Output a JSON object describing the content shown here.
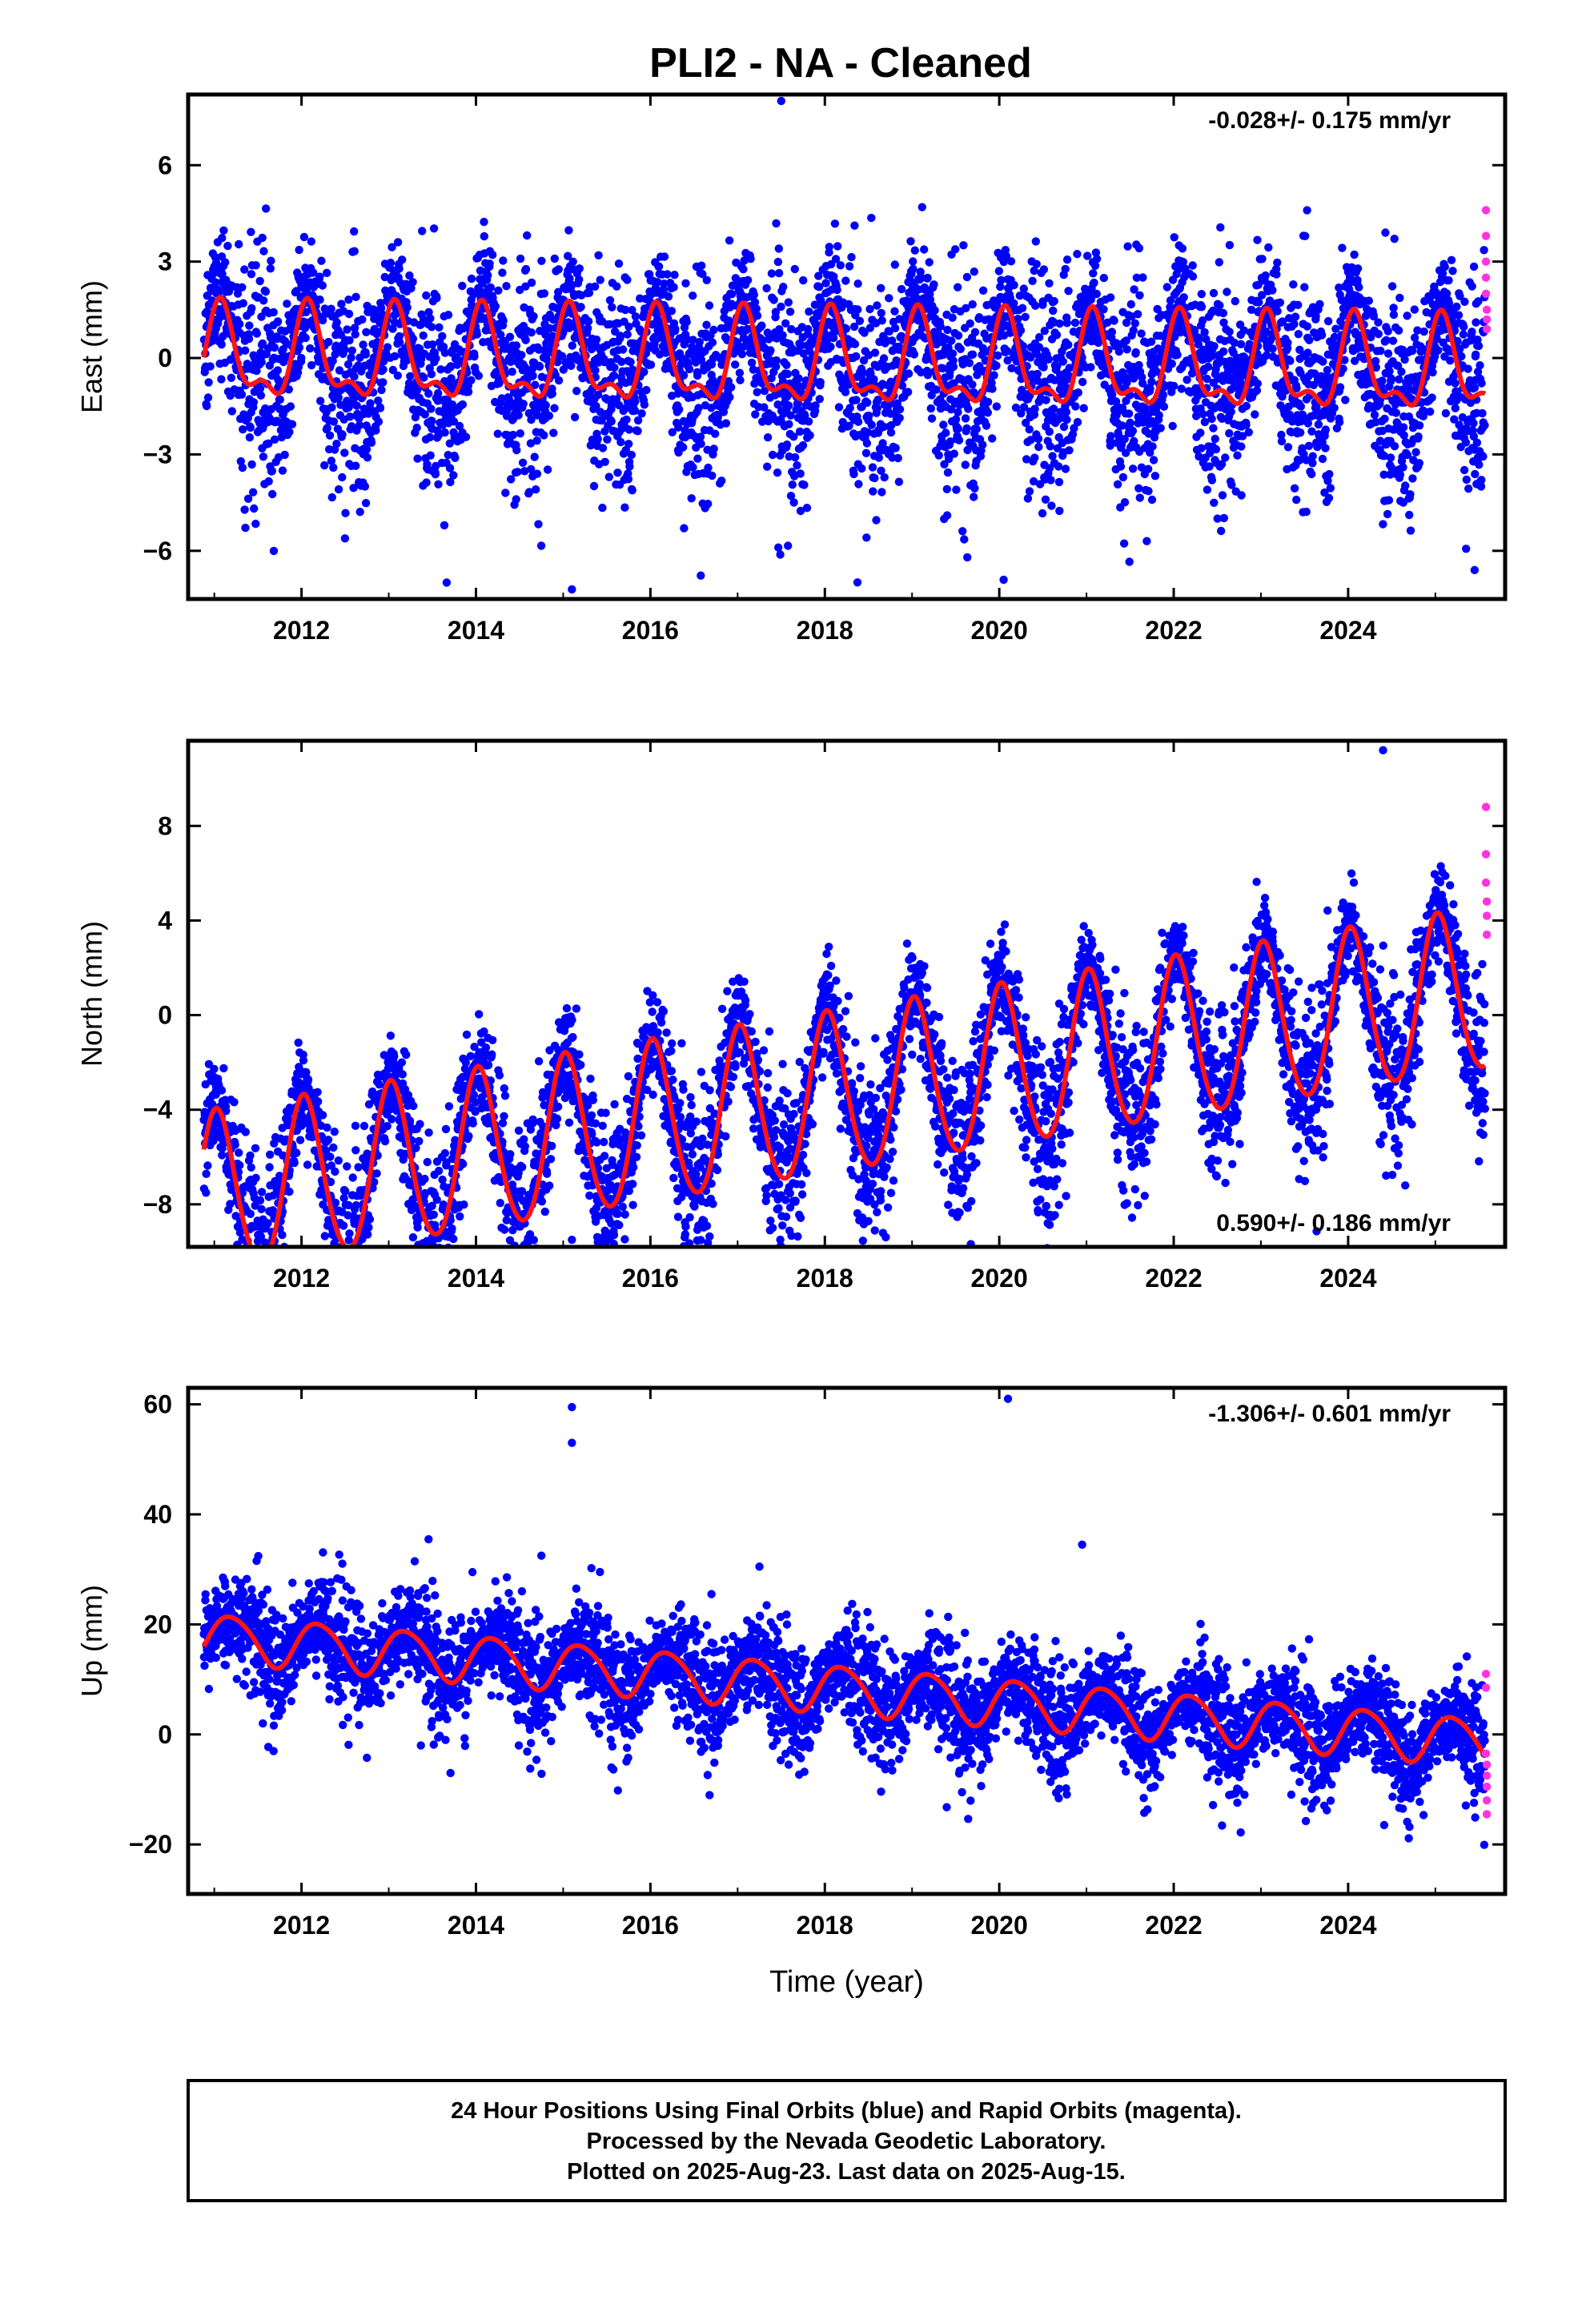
{
  "title": "PLI2  - NA - Cleaned",
  "footer": {
    "line1": "24 Hour Positions Using Final Orbits (blue) and Rapid Orbits (magenta).",
    "line2": "Processed by the Nevada Geodetic Laboratory.",
    "line3": "Plotted on 2025-Aug-23. Last data on 2025-Aug-15."
  },
  "colors": {
    "final": "#0000ff",
    "rapid": "#ff33dd",
    "model": "#ff1414",
    "frame": "#000000"
  },
  "chart_data": [
    {
      "type": "scatter",
      "component": "east",
      "ylabel": "East (mm)",
      "xlabel": "",
      "rate_text": "-0.028+/- 0.175 mm/yr",
      "rate_position": "top-right",
      "xlim": [
        2010.7,
        2025.8
      ],
      "ylim": [
        -7.5,
        8.2
      ],
      "xticks": [
        2012,
        2014,
        2016,
        2018,
        2020,
        2022,
        2024
      ],
      "yticks": [
        -6,
        -3,
        0,
        3,
        6
      ],
      "model": {
        "trend_mm_per_yr": -0.028,
        "base": -0.2,
        "annual_amp": 1.3,
        "annual_phase_year": 0.08,
        "semiannual_amp": 0.6,
        "semiannual_phase_year": 0.06
      },
      "scatter_sigma": 1.4,
      "rapid_points": {
        "x": [
          2025.58,
          2025.58,
          2025.58,
          2025.58,
          2025.58,
          2025.59,
          2025.59,
          2025.59
        ],
        "y": [
          4.6,
          3.8,
          3.0,
          2.5,
          2.0,
          1.5,
          1.2,
          0.9
        ]
      },
      "outliers": {
        "x": [
          2015.1,
          2017.5,
          2020.05,
          2025.45
        ],
        "y": [
          -7.2,
          8.0,
          -6.9,
          -6.6
        ]
      }
    },
    {
      "type": "scatter",
      "component": "north",
      "ylabel": "North (mm)",
      "xlabel": "",
      "rate_text": "0.590+/- 0.186 mm/yr",
      "rate_position": "bottom-right",
      "xlim": [
        2010.7,
        2025.8
      ],
      "ylim": [
        -9.8,
        11.6
      ],
      "xticks": [
        2012,
        2014,
        2016,
        2018,
        2020,
        2022,
        2024
      ],
      "yticks": [
        -8,
        -4,
        0,
        4,
        8
      ],
      "model": {
        "trend_mm_per_yr": 0.59,
        "base": -3.5,
        "annual_amp": 3.4,
        "annual_phase_year": 0.03,
        "semiannual_amp": 0.3,
        "semiannual_phase_year": 0.0
      },
      "scatter_sigma": 1.5,
      "rapid_points": {
        "x": [
          2025.58,
          2025.58,
          2025.58,
          2025.59,
          2025.59,
          2025.59
        ],
        "y": [
          8.8,
          6.8,
          5.6,
          4.8,
          4.2,
          3.4
        ]
      },
      "outliers": {
        "x": [
          2013.5,
          2015.1,
          2024.4
        ],
        "y": [
          -9.4,
          -9.5,
          11.2
        ]
      }
    },
    {
      "type": "scatter",
      "component": "up",
      "ylabel": "Up (mm)",
      "xlabel": "Time (year)",
      "rate_text": "-1.306+/- 0.601 mm/yr",
      "rate_position": "top-right",
      "xlim": [
        2010.7,
        2025.8
      ],
      "ylim": [
        -29,
        63
      ],
      "xticks": [
        2012,
        2014,
        2016,
        2018,
        2020,
        2022,
        2024
      ],
      "yticks": [
        -20,
        0,
        20,
        40,
        60
      ],
      "model": {
        "trend_mm_per_yr": -1.306,
        "base": 8.5,
        "annual_amp": 4.3,
        "annual_phase_year": 0.2,
        "semiannual_amp": 0.5,
        "semiannual_phase_year": 0.0
      },
      "scatter_sigma": 4.8,
      "rapid_points": {
        "x": [
          2025.58,
          2025.58,
          2025.58,
          2025.59,
          2025.59,
          2025.59,
          2025.59,
          2025.59
        ],
        "y": [
          11.0,
          8.5,
          -3.5,
          -5.5,
          -7.5,
          -9.5,
          -12.0,
          -14.5
        ]
      },
      "outliers": {
        "x": [
          2015.1,
          2015.1,
          2014.75,
          2020.1,
          2020.95,
          2013.96,
          2017.25,
          2015.15,
          2016.7
        ],
        "y": [
          59.5,
          53.0,
          32.5,
          61.0,
          34.5,
          29.5,
          30.5,
          26.5,
          25.5
        ]
      }
    }
  ]
}
